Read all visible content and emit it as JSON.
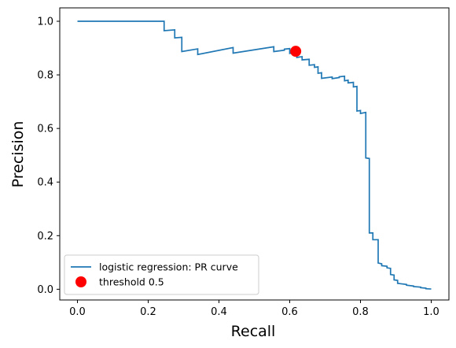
{
  "chart_data": {
    "type": "line",
    "xlabel": "Recall",
    "ylabel": "Precision",
    "xlim": [
      -0.05,
      1.05
    ],
    "ylim": [
      -0.04,
      1.05
    ],
    "xticks": [
      "0.0",
      "0.2",
      "0.4",
      "0.6",
      "0.8",
      "1.0"
    ],
    "yticks": [
      "0.0",
      "0.2",
      "0.4",
      "0.6",
      "0.8",
      "1.0"
    ],
    "grid": false,
    "legend_position": "lower-left",
    "series": [
      {
        "name": "logistic regression: PR curve",
        "color": "#1f77b4",
        "points": [
          [
            0.0,
            1.0
          ],
          [
            0.245,
            1.0
          ],
          [
            0.245,
            0.965
          ],
          [
            0.275,
            0.968
          ],
          [
            0.275,
            0.938
          ],
          [
            0.295,
            0.94
          ],
          [
            0.295,
            0.887
          ],
          [
            0.34,
            0.897
          ],
          [
            0.34,
            0.876
          ],
          [
            0.44,
            0.902
          ],
          [
            0.44,
            0.881
          ],
          [
            0.555,
            0.905
          ],
          [
            0.555,
            0.887
          ],
          [
            0.585,
            0.892
          ],
          [
            0.585,
            0.896
          ],
          [
            0.6,
            0.898
          ],
          [
            0.6,
            0.88
          ],
          [
            0.62,
            0.885
          ],
          [
            0.62,
            0.865
          ],
          [
            0.635,
            0.868
          ],
          [
            0.635,
            0.856
          ],
          [
            0.655,
            0.858
          ],
          [
            0.655,
            0.836
          ],
          [
            0.67,
            0.838
          ],
          [
            0.67,
            0.828
          ],
          [
            0.68,
            0.83
          ],
          [
            0.68,
            0.806
          ],
          [
            0.69,
            0.808
          ],
          [
            0.69,
            0.787
          ],
          [
            0.72,
            0.792
          ],
          [
            0.72,
            0.786
          ],
          [
            0.74,
            0.79
          ],
          [
            0.74,
            0.793
          ],
          [
            0.755,
            0.795
          ],
          [
            0.755,
            0.778
          ],
          [
            0.765,
            0.78
          ],
          [
            0.765,
            0.77
          ],
          [
            0.78,
            0.772
          ],
          [
            0.78,
            0.755
          ],
          [
            0.79,
            0.757
          ],
          [
            0.79,
            0.665
          ],
          [
            0.8,
            0.667
          ],
          [
            0.8,
            0.656
          ],
          [
            0.815,
            0.66
          ],
          [
            0.815,
            0.49
          ],
          [
            0.825,
            0.488
          ],
          [
            0.825,
            0.21
          ],
          [
            0.835,
            0.21
          ],
          [
            0.835,
            0.185
          ],
          [
            0.85,
            0.185
          ],
          [
            0.85,
            0.098
          ],
          [
            0.86,
            0.095
          ],
          [
            0.86,
            0.088
          ],
          [
            0.875,
            0.086
          ],
          [
            0.875,
            0.08
          ],
          [
            0.885,
            0.078
          ],
          [
            0.885,
            0.055
          ],
          [
            0.895,
            0.053
          ],
          [
            0.895,
            0.035
          ],
          [
            0.905,
            0.033
          ],
          [
            0.905,
            0.022
          ],
          [
            0.93,
            0.018
          ],
          [
            0.93,
            0.015
          ],
          [
            0.95,
            0.012
          ],
          [
            0.95,
            0.01
          ],
          [
            0.97,
            0.008
          ],
          [
            0.97,
            0.006
          ],
          [
            0.985,
            0.004
          ],
          [
            0.985,
            0.002
          ],
          [
            1.0,
            0.001
          ]
        ]
      }
    ],
    "markers": [
      {
        "name": "threshold 0.5",
        "color": "#ff0000",
        "x": 0.617,
        "y": 0.888
      }
    ]
  }
}
